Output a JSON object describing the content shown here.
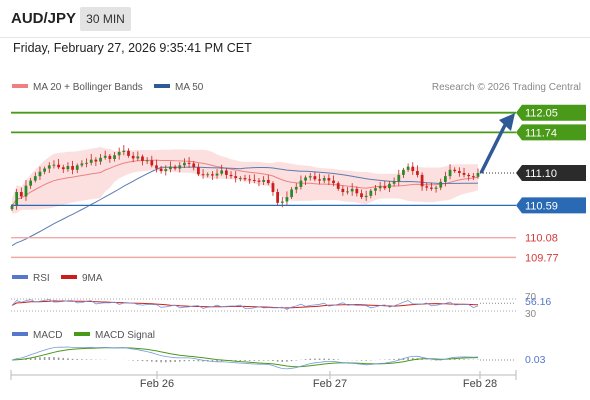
{
  "header": {
    "symbol": "AUD/JPY",
    "timeframe": "30 MIN",
    "timestamp": "Friday, February 27, 2026 9:35:41 PM CET"
  },
  "legend": {
    "ma20_label": "MA 20 + Bollinger Bands",
    "ma50_label": "MA 50",
    "credit": "Research © 2026 Trading Central",
    "colors": {
      "ma20": "#f08080",
      "bb": "#f9d0d0",
      "ma50": "#2f5a95",
      "candle": "#cc1d1d"
    }
  },
  "price_panel": {
    "levels": [
      {
        "value": 112.05,
        "label": "112.05",
        "kind": "resistance",
        "color": "#4a9a1a"
      },
      {
        "value": 111.74,
        "label": "111.74",
        "kind": "resistance",
        "color": "#4a9a1a"
      },
      {
        "value": 110.59,
        "label": "110.59",
        "kind": "pivot",
        "color": "#2a6ab5"
      },
      {
        "value": 110.08,
        "label": "110.08",
        "kind": "support",
        "color": "#d43b3b"
      },
      {
        "value": 109.77,
        "label": "109.77",
        "kind": "support",
        "color": "#d43b3b"
      }
    ],
    "last_price": {
      "value": 111.1,
      "label": "111.10"
    },
    "forecast_arrow": {
      "from": 111.1,
      "to": 111.95,
      "direction": "up",
      "color": "#2f5a95"
    }
  },
  "rsi_panel": {
    "rsi_label": "RSI",
    "ma_label": "9MA",
    "value_label": "56.16",
    "level_70": "70",
    "level_30": "30",
    "colors": {
      "rsi": "#5577cc",
      "ma": "#cc1d1d"
    }
  },
  "macd_panel": {
    "macd_label": "MACD",
    "signal_label": "MACD Signal",
    "value_label": "0.03",
    "colors": {
      "macd": "#5577cc",
      "signal": "#4a9a1a"
    }
  },
  "x_axis": {
    "ticks": [
      "Feb 26",
      "Feb 27",
      "Feb 28"
    ]
  },
  "chart_data": {
    "type": "line",
    "series": [
      {
        "name": "AUD/JPY",
        "values": [
          110.58,
          110.8,
          110.73,
          110.9,
          110.98,
          111.05,
          111.12,
          111.17,
          111.22,
          111.23,
          111.19,
          111.16,
          111.21,
          111.15,
          111.22,
          111.25,
          111.26,
          111.31,
          111.28,
          111.34,
          111.37,
          111.32,
          111.38,
          111.43,
          111.45,
          111.37,
          111.33,
          111.36,
          111.29,
          111.3,
          111.22,
          111.17,
          111.13,
          111.16,
          111.2,
          111.17,
          111.22,
          111.26,
          111.25,
          111.19,
          111.08,
          111.07,
          111.08,
          111.06,
          111.09,
          111.14,
          111.07,
          111.05,
          111.02,
          111.02,
          111.0,
          110.99,
          110.98,
          110.96,
          110.99,
          110.94,
          110.8,
          110.63,
          110.65,
          110.72,
          110.84,
          110.88,
          110.98,
          111.03,
          111.05,
          111.0,
          110.98,
          111.02,
          110.98,
          110.94,
          110.85,
          110.8,
          110.81,
          110.85,
          110.78,
          110.72,
          110.74,
          110.82,
          110.86,
          110.89,
          110.86,
          110.93,
          110.97,
          111.07,
          111.15,
          111.2,
          111.13,
          111.07,
          110.89,
          110.87,
          110.85,
          110.87,
          110.96,
          111.05,
          111.15,
          111.13,
          111.1,
          111.07,
          111.05,
          111.04,
          111.1
        ]
      }
    ],
    "ylim": [
      109.65,
      112.25
    ]
  }
}
